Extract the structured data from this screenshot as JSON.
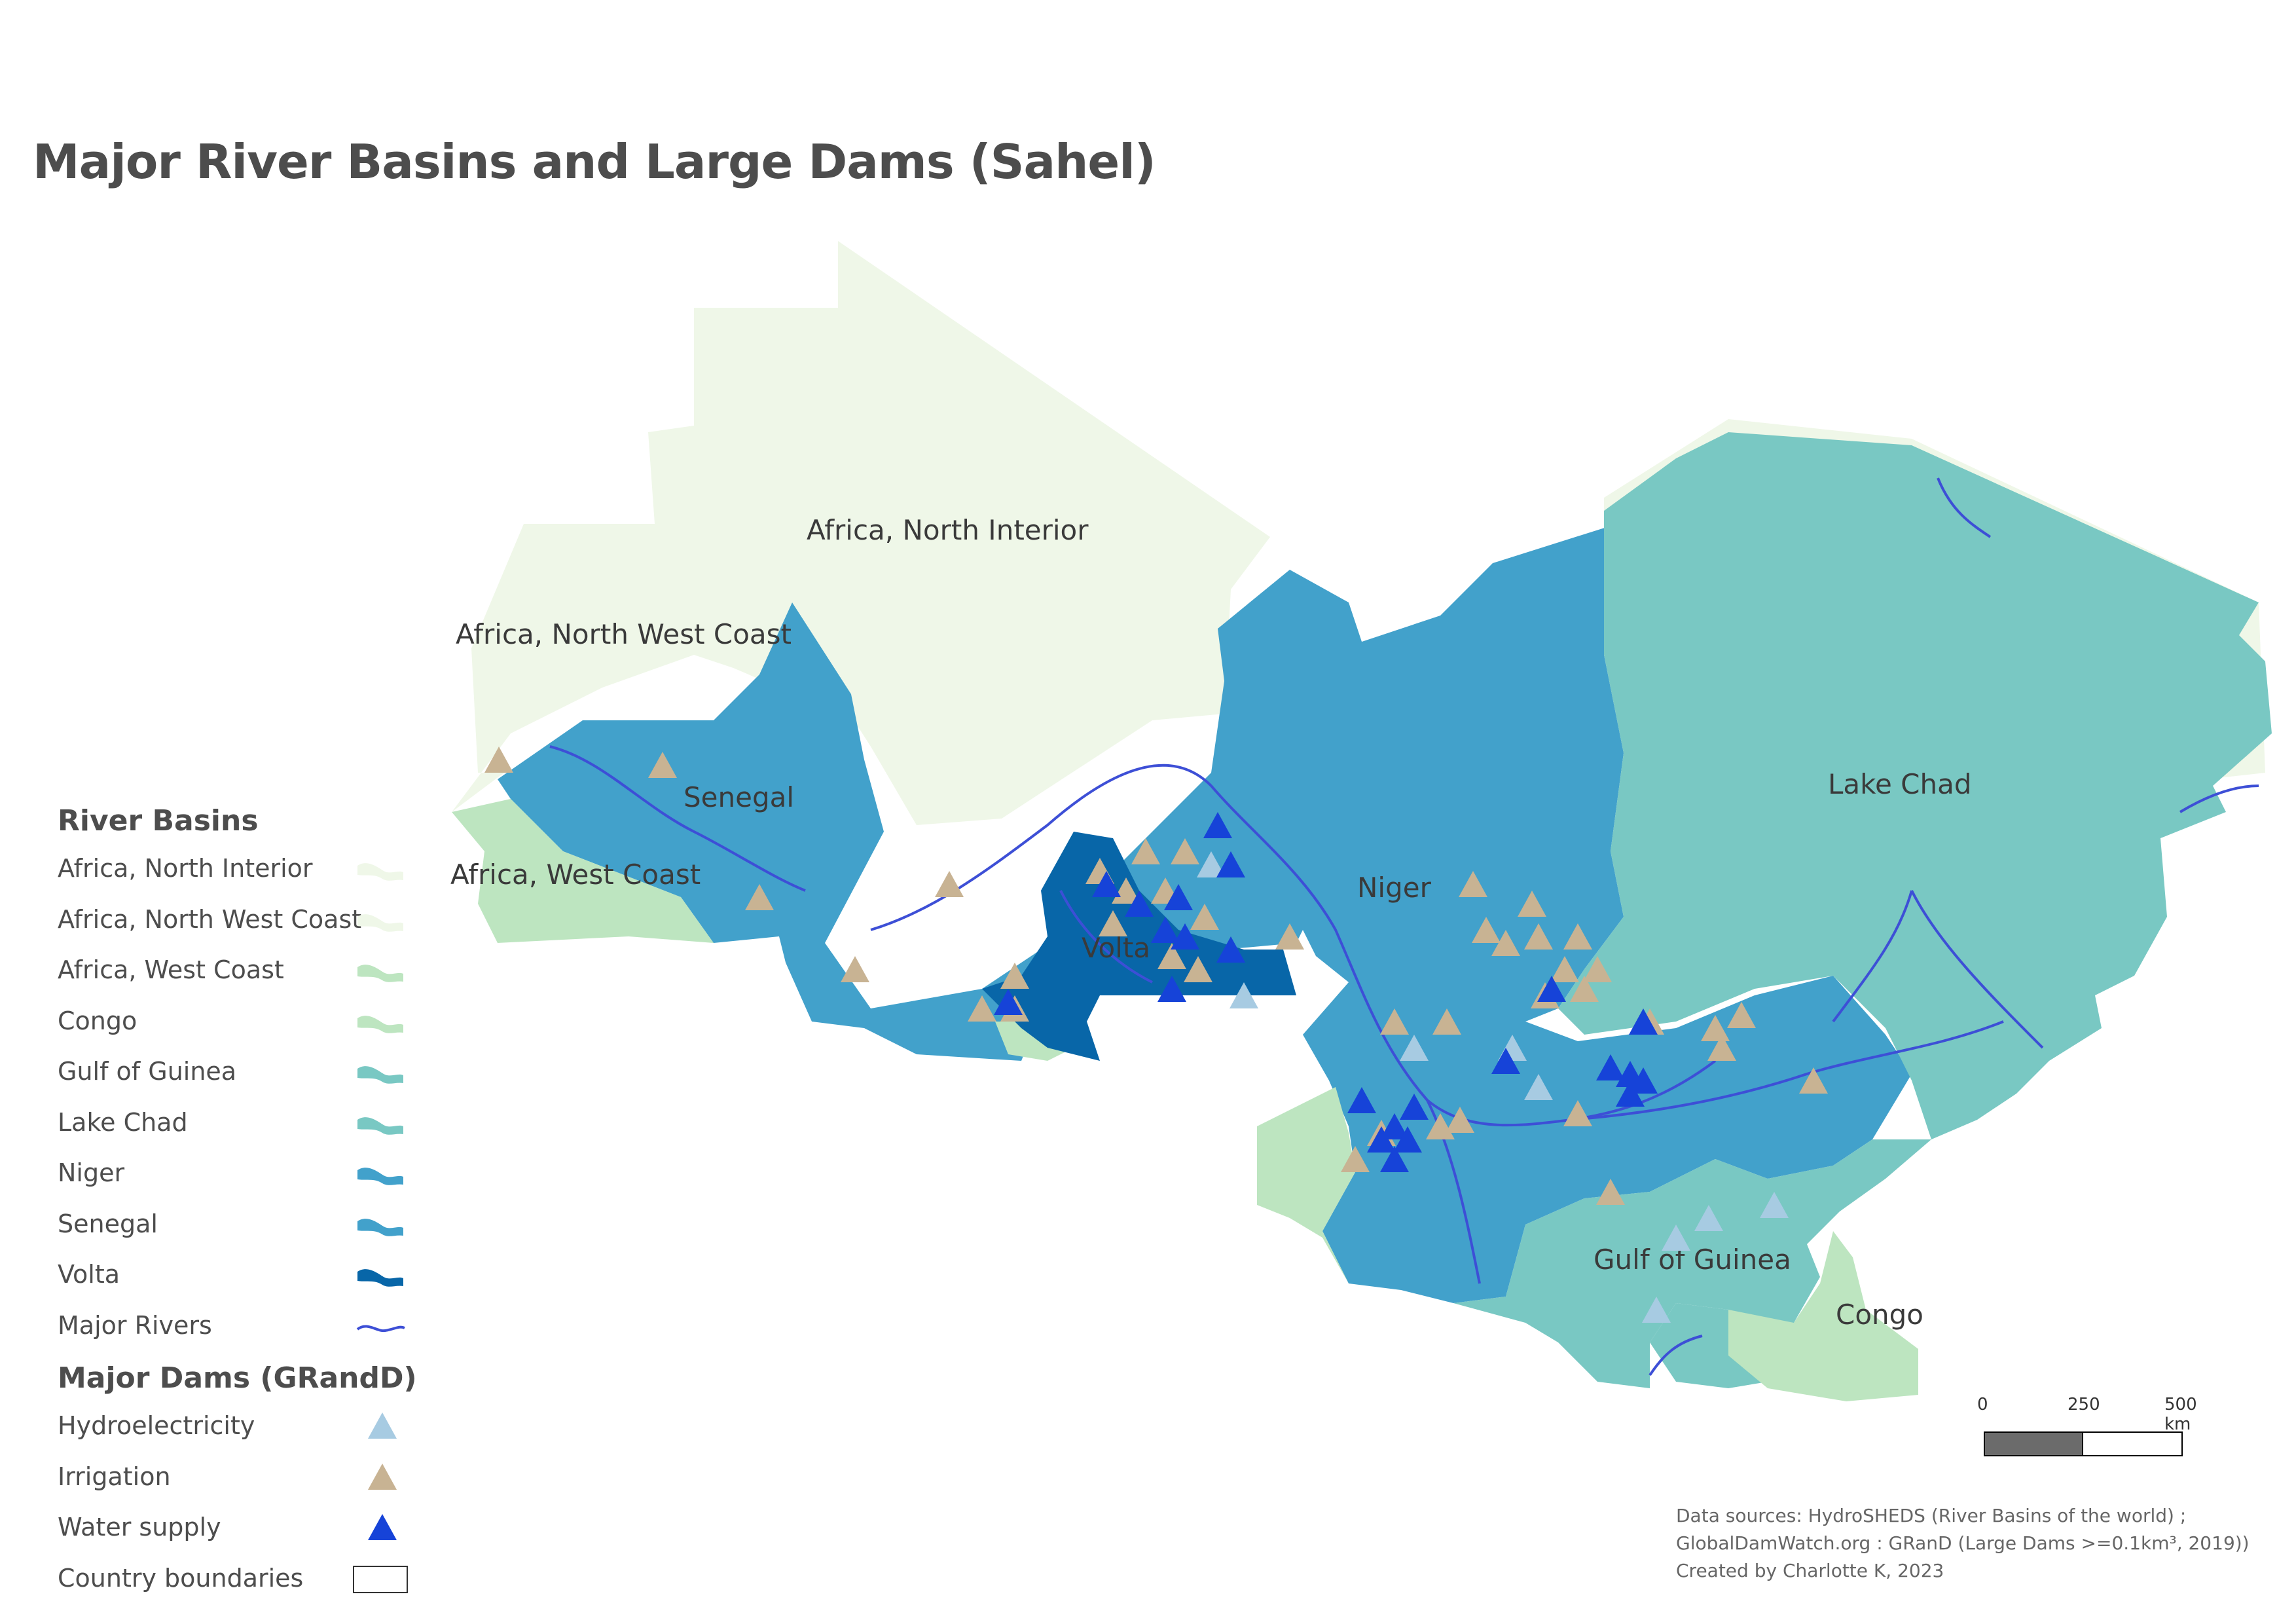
{
  "title": "Major River Basins and Large Dams (Sahel)",
  "map_labels": {
    "north_interior": "Africa, North Interior",
    "north_west_coast": "Africa, North West Coast",
    "senegal": "Senegal",
    "west_coast": "Africa, West Coast",
    "niger": "Niger",
    "volta": "Volta",
    "lake_chad": "Lake Chad",
    "gulf_of_guinea": "Gulf of Guinea",
    "congo": "Congo"
  },
  "legend": {
    "basins_heading": "River Basins",
    "basins": [
      {
        "label": "Africa, North Interior",
        "color": "#eff7e8"
      },
      {
        "label": "Africa, North West Coast",
        "color": "#eff7e8"
      },
      {
        "label": "Africa, West Coast",
        "color": "#bde5c0"
      },
      {
        "label": "Congo",
        "color": "#bde5c0"
      },
      {
        "label": "Gulf of Guinea",
        "color": "#79c8c3"
      },
      {
        "label": "Lake Chad",
        "color": "#79c8c3"
      },
      {
        "label": "Niger",
        "color": "#42a1cb"
      },
      {
        "label": "Senegal",
        "color": "#42a1cb"
      },
      {
        "label": "Volta",
        "color": "#0866a8"
      },
      {
        "label": "Major Rivers",
        "color": "#3d4fd6"
      }
    ],
    "dams_heading": "Major Dams (GRandD)",
    "dams": [
      {
        "label": "Hydroelectricity",
        "color": "#a7cbe2"
      },
      {
        "label": "Irrigation",
        "color": "#c8b393"
      },
      {
        "label": "Water supply",
        "color": "#1643d8"
      },
      {
        "label": "Country boundaries",
        "color": "#ffffff"
      }
    ]
  },
  "scale": {
    "tick0": "0",
    "tick1": "250",
    "tick2": "500 km"
  },
  "credits": {
    "line1": "Data sources: HydroSHEDS (River Basins of the world) ;",
    "line2": "GlobalDamWatch.org : GRanD (Large Dams >=0.1km³, 2019))",
    "line3": "Created by Charlotte K, 2023"
  }
}
